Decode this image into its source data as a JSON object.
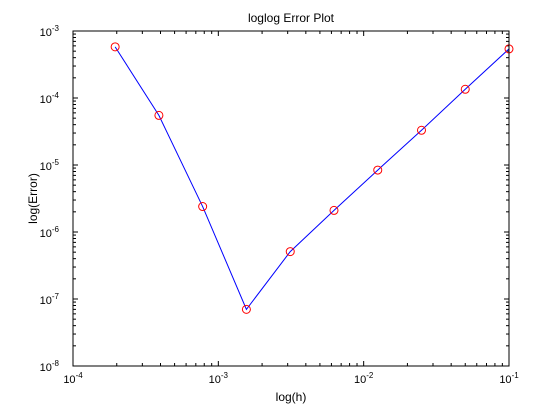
{
  "chart_data": {
    "type": "line",
    "title": "loglog Error Plot",
    "xlabel": "log(h)",
    "ylabel": "log(Error)",
    "xscale": "log",
    "yscale": "log",
    "xlim": [
      0.0001,
      0.1
    ],
    "ylim": [
      1e-08,
      0.001
    ],
    "x_ticks": [
      {
        "value": 0.0001,
        "base": "10",
        "exp": "-4"
      },
      {
        "value": 0.001,
        "base": "10",
        "exp": "-3"
      },
      {
        "value": 0.01,
        "base": "10",
        "exp": "-2"
      },
      {
        "value": 0.1,
        "base": "10",
        "exp": "-1"
      }
    ],
    "y_ticks": [
      {
        "value": 1e-08,
        "base": "10",
        "exp": "-8"
      },
      {
        "value": 1e-07,
        "base": "10",
        "exp": "-7"
      },
      {
        "value": 1e-06,
        "base": "10",
        "exp": "-6"
      },
      {
        "value": 1e-05,
        "base": "10",
        "exp": "-5"
      },
      {
        "value": 0.0001,
        "base": "10",
        "exp": "-4"
      },
      {
        "value": 0.001,
        "base": "10",
        "exp": "-3"
      }
    ],
    "grid": false,
    "legend": "none",
    "series": [
      {
        "line_color": "#0000ff",
        "marker": "circle",
        "marker_color": "#ff0000",
        "x": [
          0.000195,
          0.00039,
          0.00078,
          0.00156,
          0.003125,
          0.00625,
          0.0125,
          0.025,
          0.05,
          0.1
        ],
        "y": [
          0.00058,
          5.5e-05,
          2.4e-06,
          7e-08,
          5.1e-07,
          2.1e-06,
          8.4e-06,
          3.3e-05,
          0.000135,
          0.00054
        ]
      }
    ]
  }
}
